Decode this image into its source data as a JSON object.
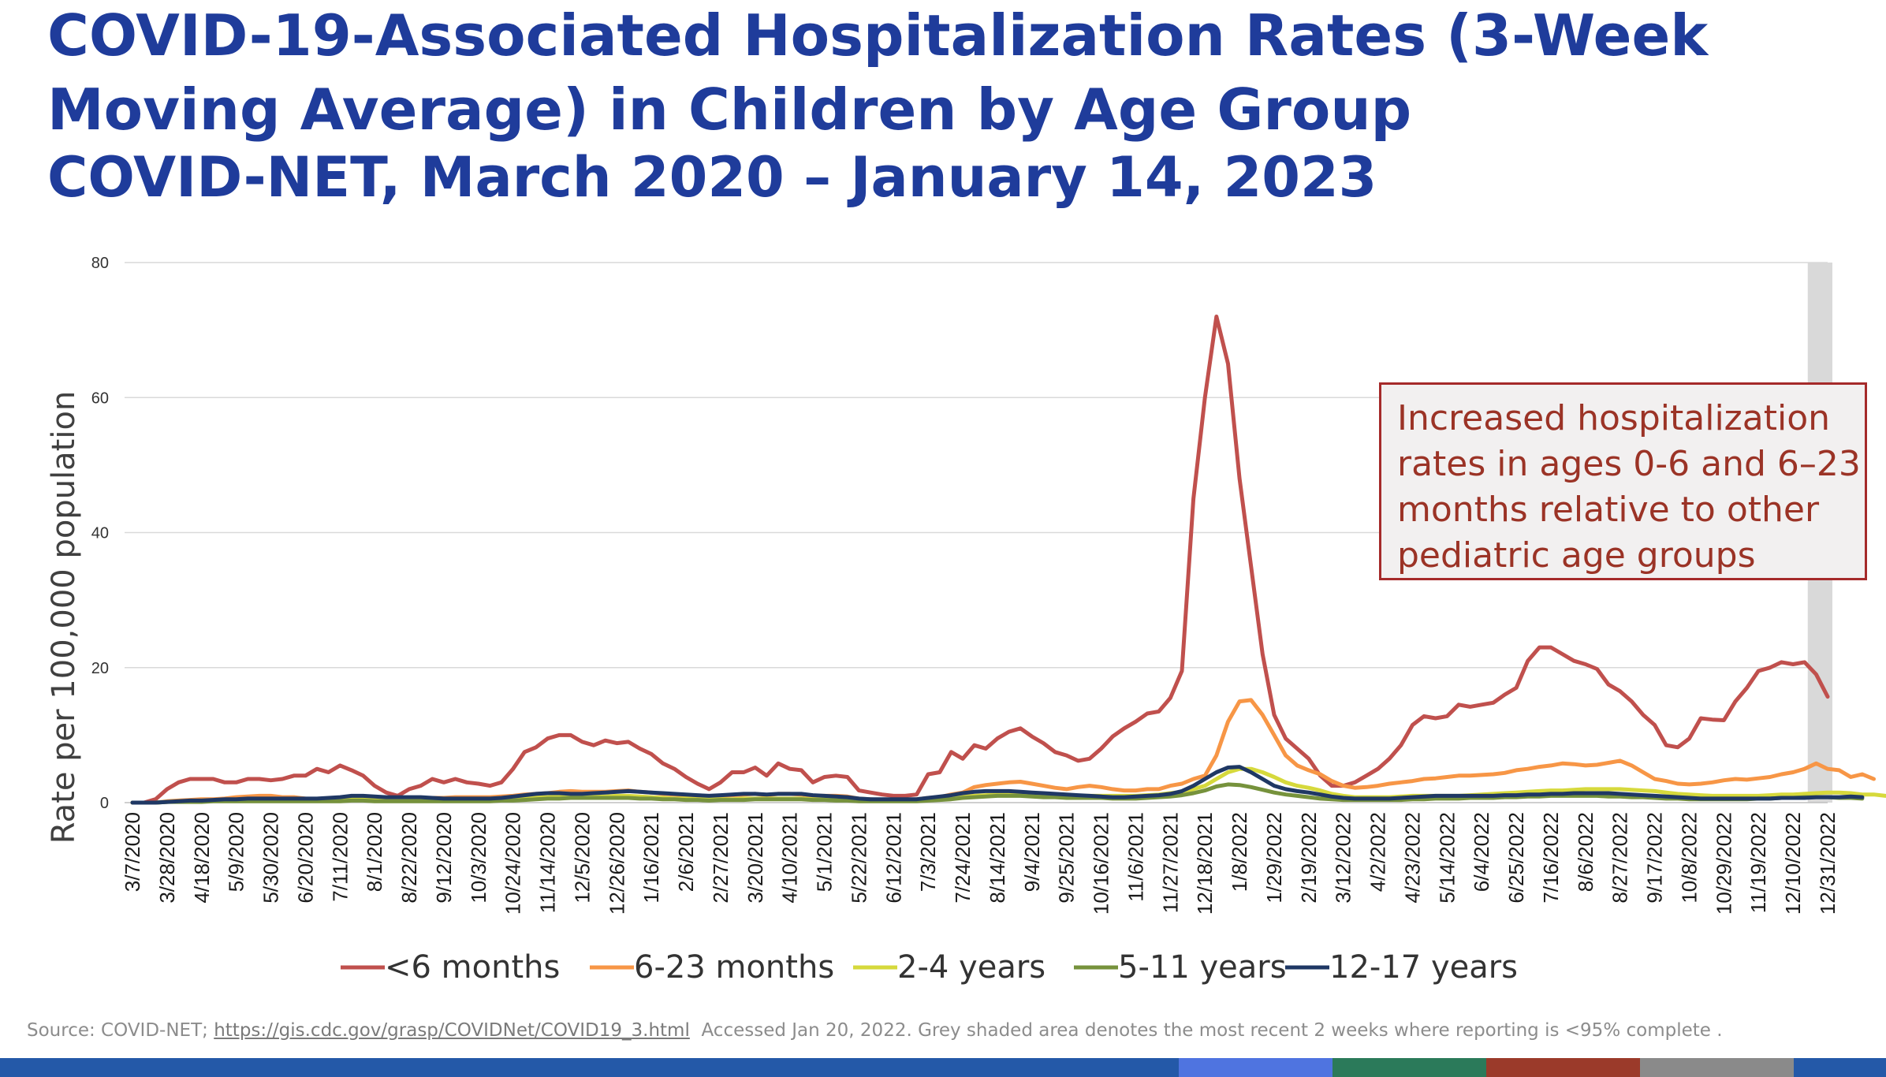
{
  "title": "COVID-19-Associated Hospitalization Rates (3-Week Moving Average) in Children by Age Group",
  "subtitle": "COVID-NET, March 2020 – January 14, 2023",
  "annotation": "Increased hospitalization rates in ages 0-6 and 6–23 months relative to other pediatric age groups",
  "source": {
    "prefix": "Source:  COVID-NET;",
    "link": "https://gis.cdc.gov/grasp/COVIDNet/COVID19_3.html",
    "suffix": "Accessed Jan 20, 2022. Grey shaded area denotes the most recent 2 weeks where reporting is <95% complete ."
  },
  "bottom_bar_colors": [
    "#2459a8",
    "#4f74e0",
    "#2b7a5a",
    "#9b3a2a",
    "#8a8a8a",
    "#2459a8"
  ],
  "chart_data": {
    "type": "line",
    "title": "",
    "xlabel": "",
    "ylabel": "Rate per 100,000 population",
    "ylim": [
      0,
      80
    ],
    "yticks": [
      0,
      20,
      40,
      60,
      80
    ],
    "grid": true,
    "legend_position": "bottom",
    "x_tick_labels": [
      "3/7/2020",
      "3/28/2020",
      "4/18/2020",
      "5/9/2020",
      "5/30/2020",
      "6/20/2020",
      "7/11/2020",
      "8/1/2020",
      "8/22/2020",
      "9/12/2020",
      "10/3/2020",
      "10/24/2020",
      "11/14/2020",
      "12/5/2020",
      "12/26/2020",
      "1/16/2021",
      "2/6/2021",
      "2/27/2021",
      "3/20/2021",
      "4/10/2021",
      "5/1/2021",
      "5/22/2021",
      "6/12/2021",
      "7/3/2021",
      "7/24/2021",
      "8/14/2021",
      "9/4/2021",
      "9/25/2021",
      "10/16/2021",
      "11/6/2021",
      "11/27/2021",
      "12/18/2021",
      "1/8/2022",
      "1/29/2022",
      "2/19/2022",
      "3/12/2022",
      "4/2/2022",
      "4/23/2022",
      "5/14/2022",
      "6/4/2022",
      "6/25/2022",
      "7/16/2022",
      "8/6/2022",
      "8/27/2022",
      "9/17/2022",
      "10/8/2022",
      "10/29/2022",
      "11/19/2022",
      "12/10/2022",
      "12/31/2022"
    ],
    "shaded_last_weeks": 2,
    "series": [
      {
        "name": "<6 months",
        "color": "#c0504d",
        "values": [
          0,
          0,
          0.5,
          2,
          3,
          3.5,
          3.5,
          3.5,
          3,
          3,
          3.5,
          3.5,
          3.3,
          3.5,
          4,
          4,
          5,
          4.5,
          5.5,
          4.8,
          4,
          2.5,
          1.5,
          1,
          2,
          2.5,
          3.5,
          3,
          3.5,
          3,
          2.8,
          2.5,
          3,
          5,
          7.5,
          8.2,
          9.5,
          10,
          10,
          9,
          8.5,
          9.2,
          8.8,
          9,
          8,
          7.2,
          5.8,
          5,
          3.8,
          2.8,
          2,
          3,
          4.5,
          4.5,
          5.2,
          4,
          5.8,
          5,
          4.8,
          3,
          3.8,
          4,
          3.8,
          1.8,
          1.5,
          1.2,
          1,
          1,
          1.2,
          4.2,
          4.5,
          7.5,
          6.5,
          8.5,
          8,
          9.5,
          10.5,
          11,
          9.8,
          8.8,
          7.5,
          7,
          6.2,
          6.5,
          8,
          9.8,
          11,
          12,
          13.2,
          13.5,
          15.5,
          19.5,
          45,
          60,
          72,
          65,
          48,
          35,
          22,
          13,
          9.5,
          8,
          6.5,
          4,
          2.5,
          2.5,
          3,
          4,
          5,
          6.5,
          8.5,
          11.5,
          12.8,
          12.5,
          12.8,
          14.5,
          14.2,
          14.5,
          14.8,
          16,
          17,
          21,
          23,
          23,
          22,
          21,
          20.5,
          19.8,
          17.5,
          16.5,
          15,
          13,
          11.5,
          8.5,
          8.2,
          9.5,
          12.5,
          12.3,
          12.2,
          15,
          17,
          19.5,
          20,
          20.8,
          20.5,
          20.8,
          19,
          15.7
        ]
      },
      {
        "name": "6-23 months",
        "color": "#f79646",
        "values": [
          0,
          0,
          0,
          0.2,
          0.3,
          0.4,
          0.5,
          0.5,
          0.6,
          0.8,
          0.9,
          1,
          1,
          0.8,
          0.8,
          0.6,
          0.5,
          0.6,
          0.7,
          0.8,
          0.8,
          0.7,
          0.5,
          0.4,
          0.5,
          0.6,
          0.7,
          0.7,
          0.8,
          0.8,
          0.8,
          0.8,
          0.9,
          1,
          1.2,
          1.3,
          1.4,
          1.6,
          1.7,
          1.6,
          1.6,
          1.6,
          1.7,
          1.8,
          1.6,
          1.5,
          1.3,
          1.2,
          1.1,
          1,
          0.9,
          1,
          1.1,
          1.2,
          1.3,
          1.1,
          1.3,
          1.3,
          1.2,
          1,
          1,
          1,
          0.9,
          0.6,
          0.5,
          0.4,
          0.4,
          0.4,
          0.5,
          0.7,
          0.8,
          1.2,
          1.5,
          2.3,
          2.6,
          2.8,
          3,
          3.1,
          2.8,
          2.5,
          2.2,
          2,
          2.3,
          2.5,
          2.3,
          2,
          1.8,
          1.8,
          2,
          2,
          2.5,
          2.8,
          3.5,
          4,
          7,
          12,
          15,
          15.2,
          13,
          10,
          7,
          5.5,
          4.8,
          4.2,
          3.2,
          2.5,
          2.2,
          2.3,
          2.5,
          2.8,
          3,
          3.2,
          3.5,
          3.6,
          3.8,
          4,
          4,
          4.1,
          4.2,
          4.4,
          4.8,
          5,
          5.3,
          5.5,
          5.8,
          5.7,
          5.5,
          5.6,
          5.9,
          6.2,
          5.5,
          4.5,
          3.5,
          3.2,
          2.8,
          2.7,
          2.8,
          3,
          3.3,
          3.5,
          3.4,
          3.6,
          3.8,
          4.2,
          4.5,
          5,
          5.8,
          5,
          4.8,
          3.8,
          4.2,
          3.5
        ]
      },
      {
        "name": "2-4 years",
        "color": "#d6d93c",
        "values": [
          0,
          0,
          0,
          0.1,
          0.2,
          0.2,
          0.3,
          0.3,
          0.3,
          0.4,
          0.4,
          0.4,
          0.4,
          0.4,
          0.4,
          0.3,
          0.3,
          0.4,
          0.4,
          0.5,
          0.5,
          0.4,
          0.3,
          0.3,
          0.3,
          0.3,
          0.3,
          0.3,
          0.3,
          0.4,
          0.4,
          0.4,
          0.5,
          0.6,
          0.7,
          0.8,
          0.8,
          0.9,
          1,
          0.9,
          0.9,
          0.9,
          1,
          1,
          0.9,
          0.8,
          0.7,
          0.6,
          0.6,
          0.5,
          0.5,
          0.5,
          0.5,
          0.6,
          0.6,
          0.6,
          0.6,
          0.6,
          0.6,
          0.5,
          0.5,
          0.5,
          0.4,
          0.3,
          0.3,
          0.3,
          0.3,
          0.3,
          0.3,
          0.4,
          0.5,
          0.7,
          0.9,
          1,
          1.1,
          1.2,
          1.3,
          1.3,
          1.2,
          1.1,
          1,
          1,
          1,
          1,
          1,
          1,
          1,
          1,
          1.1,
          1.2,
          1.4,
          1.6,
          2,
          2.5,
          3.5,
          4.5,
          5,
          5,
          4.5,
          3.8,
          3,
          2.5,
          2.2,
          1.8,
          1.3,
          1,
          0.8,
          0.8,
          0.8,
          0.8,
          0.9,
          1,
          1,
          1,
          1,
          1,
          1.1,
          1.2,
          1.3,
          1.4,
          1.5,
          1.6,
          1.7,
          1.8,
          1.8,
          1.9,
          2,
          2,
          2,
          2,
          1.9,
          1.8,
          1.7,
          1.5,
          1.3,
          1.2,
          1.1,
          1,
          1,
          1,
          1,
          1,
          1.1,
          1.2,
          1.2,
          1.3,
          1.4,
          1.5,
          1.5,
          1.4,
          1.2,
          1.2,
          1
        ]
      },
      {
        "name": "5-11 years",
        "color": "#76923c",
        "values": [
          0,
          0,
          0,
          0.1,
          0.1,
          0.1,
          0.1,
          0.2,
          0.2,
          0.2,
          0.2,
          0.2,
          0.2,
          0.2,
          0.2,
          0.2,
          0.2,
          0.2,
          0.2,
          0.3,
          0.3,
          0.2,
          0.2,
          0.2,
          0.2,
          0.2,
          0.2,
          0.2,
          0.2,
          0.2,
          0.2,
          0.2,
          0.3,
          0.3,
          0.4,
          0.5,
          0.6,
          0.6,
          0.7,
          0.7,
          0.7,
          0.7,
          0.7,
          0.7,
          0.6,
          0.6,
          0.5,
          0.5,
          0.4,
          0.4,
          0.3,
          0.4,
          0.4,
          0.4,
          0.5,
          0.5,
          0.5,
          0.5,
          0.5,
          0.4,
          0.4,
          0.3,
          0.3,
          0.2,
          0.2,
          0.2,
          0.2,
          0.2,
          0.2,
          0.3,
          0.4,
          0.5,
          0.7,
          0.8,
          0.9,
          1,
          1,
          1,
          0.9,
          0.8,
          0.8,
          0.7,
          0.7,
          0.7,
          0.7,
          0.6,
          0.6,
          0.6,
          0.7,
          0.8,
          0.9,
          1.1,
          1.4,
          1.8,
          2.4,
          2.7,
          2.6,
          2.3,
          1.9,
          1.5,
          1.2,
          1,
          0.8,
          0.6,
          0.5,
          0.4,
          0.4,
          0.4,
          0.4,
          0.4,
          0.4,
          0.5,
          0.5,
          0.6,
          0.6,
          0.6,
          0.7,
          0.7,
          0.7,
          0.8,
          0.8,
          0.9,
          0.9,
          1,
          1,
          1,
          1,
          1,
          0.9,
          0.9,
          0.8,
          0.8,
          0.7,
          0.6,
          0.6,
          0.5,
          0.5,
          0.5,
          0.5,
          0.5,
          0.5,
          0.6,
          0.6,
          0.7,
          0.7,
          0.8,
          0.8,
          0.8,
          0.7,
          0.7,
          0.6
        ]
      },
      {
        "name": "12-17 years",
        "color": "#1f3864",
        "values": [
          0,
          0,
          0,
          0.1,
          0.2,
          0.3,
          0.3,
          0.4,
          0.5,
          0.5,
          0.6,
          0.6,
          0.6,
          0.6,
          0.6,
          0.6,
          0.6,
          0.7,
          0.8,
          1,
          1,
          0.9,
          0.8,
          0.8,
          0.8,
          0.8,
          0.7,
          0.6,
          0.6,
          0.6,
          0.6,
          0.6,
          0.7,
          0.9,
          1.1,
          1.3,
          1.4,
          1.4,
          1.3,
          1.3,
          1.4,
          1.5,
          1.6,
          1.7,
          1.6,
          1.5,
          1.4,
          1.3,
          1.2,
          1.1,
          1,
          1.1,
          1.2,
          1.3,
          1.3,
          1.2,
          1.3,
          1.3,
          1.3,
          1.1,
          1,
          0.9,
          0.8,
          0.6,
          0.5,
          0.5,
          0.5,
          0.5,
          0.5,
          0.7,
          0.9,
          1.1,
          1.4,
          1.6,
          1.7,
          1.7,
          1.7,
          1.6,
          1.5,
          1.4,
          1.3,
          1.2,
          1.1,
          1,
          0.9,
          0.8,
          0.8,
          0.9,
          1,
          1.1,
          1.3,
          1.7,
          2.5,
          3.5,
          4.5,
          5.2,
          5.3,
          4.5,
          3.5,
          2.5,
          2,
          1.7,
          1.5,
          1.2,
          0.9,
          0.7,
          0.6,
          0.6,
          0.6,
          0.6,
          0.7,
          0.8,
          0.9,
          1,
          1,
          1,
          1,
          1,
          1,
          1.1,
          1.1,
          1.2,
          1.2,
          1.3,
          1.3,
          1.4,
          1.4,
          1.4,
          1.4,
          1.3,
          1.2,
          1.1,
          1,
          0.9,
          0.8,
          0.7,
          0.6,
          0.6,
          0.6,
          0.6,
          0.6,
          0.6,
          0.6,
          0.7,
          0.7,
          0.7,
          0.8,
          0.8,
          0.8,
          0.9,
          0.8
        ]
      }
    ]
  }
}
